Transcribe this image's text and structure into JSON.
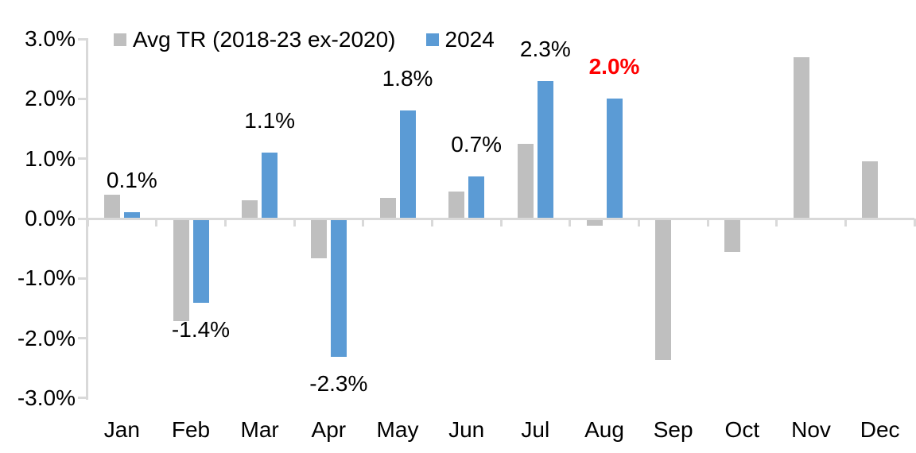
{
  "chart_data": {
    "type": "bar",
    "title": "",
    "xlabel": "",
    "ylabel": "",
    "categories": [
      "Jan",
      "Feb",
      "Mar",
      "Apr",
      "May",
      "Jun",
      "Jul",
      "Aug",
      "Sep",
      "Oct",
      "Nov",
      "Dec"
    ],
    "series": [
      {
        "name": "Avg TR (2018-23 ex-2020)",
        "color": "#bfbfbf",
        "values": [
          0.4,
          -1.7,
          0.3,
          -0.65,
          0.35,
          0.45,
          1.25,
          -0.1,
          -2.35,
          -0.55,
          2.7,
          0.95
        ]
      },
      {
        "name": "2024",
        "color": "#5b9bd5",
        "values": [
          0.1,
          -1.4,
          1.1,
          -2.3,
          1.8,
          0.7,
          2.3,
          2.0,
          null,
          null,
          null,
          null
        ],
        "labels": [
          "0.1%",
          "-1.4%",
          "1.1%",
          "-2.3%",
          "1.8%",
          "0.7%",
          "2.3%",
          "2.0%",
          null,
          null,
          null,
          null
        ],
        "highlight_index": 7,
        "highlight_color": "#ff0000"
      }
    ],
    "ylim": [
      -3.0,
      3.0
    ],
    "y_tick_labels": [
      "3.0%",
      "2.0%",
      "1.0%",
      "0.0%",
      "-1.0%",
      "-2.0%",
      "-3.0%"
    ],
    "y_tick_values": [
      3,
      2,
      1,
      0,
      -1,
      -2,
      -3
    ],
    "legend_position": "top",
    "grid": false,
    "axis_color": "#d9d9d9",
    "text_color": "#000000",
    "label_color": "#000000"
  }
}
